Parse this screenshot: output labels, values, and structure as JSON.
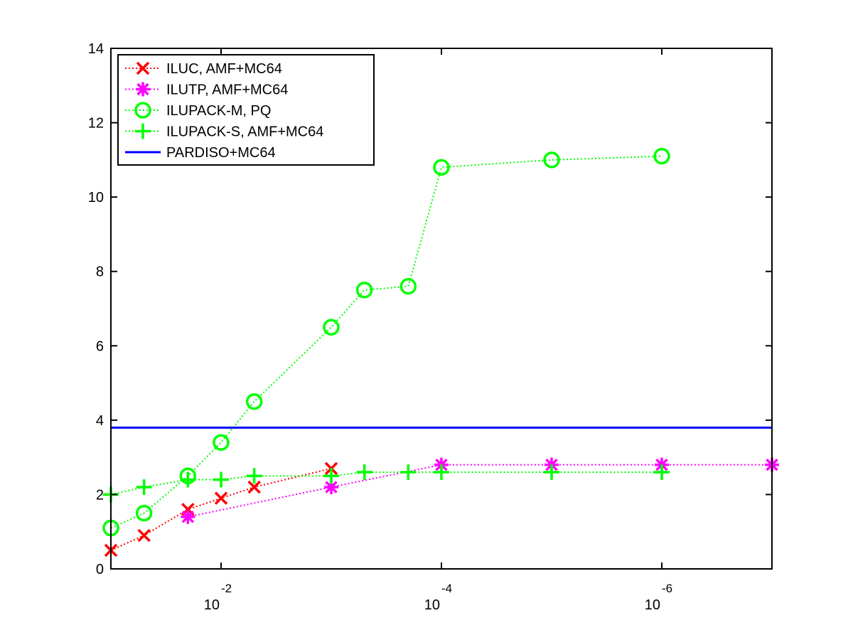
{
  "chart_data": {
    "type": "line",
    "x_scale": "log-reversed",
    "xlim": [
      0.1,
      1e-07
    ],
    "ylim": [
      0,
      14
    ],
    "x_ticks": [
      {
        "value": 0.01,
        "base": "10",
        "exp": "-2"
      },
      {
        "value": 0.0001,
        "base": "10",
        "exp": "-4"
      },
      {
        "value": 1e-06,
        "base": "10",
        "exp": "-6"
      }
    ],
    "y_ticks": [
      {
        "value": 0,
        "label": "0"
      },
      {
        "value": 2,
        "label": "2"
      },
      {
        "value": 4,
        "label": "4"
      },
      {
        "value": 6,
        "label": "6"
      },
      {
        "value": 8,
        "label": "8"
      },
      {
        "value": 10,
        "label": "10"
      },
      {
        "value": 12,
        "label": "12"
      },
      {
        "value": 14,
        "label": "14"
      }
    ],
    "grid": false,
    "legend_position": "top-left",
    "series": [
      {
        "name": "ILUC, AMF+MC64",
        "color": "#ff0000",
        "marker": "x",
        "line_style": "dotted",
        "x": [
          0.1,
          0.05,
          0.02,
          0.01,
          0.005,
          0.001
        ],
        "y": [
          0.5,
          0.9,
          1.6,
          1.9,
          2.2,
          2.7
        ]
      },
      {
        "name": "ILUTP, AMF+MC64",
        "color": "#ff00ff",
        "marker": "asterisk",
        "line_style": "dotted",
        "x": [
          0.02,
          0.001,
          0.0001,
          1e-05,
          1e-06,
          1e-07
        ],
        "y": [
          1.4,
          2.2,
          2.8,
          2.8,
          2.8,
          2.8
        ]
      },
      {
        "name": "ILUPACK-M, PQ",
        "color": "#00ff00",
        "marker": "circle",
        "line_style": "dotted",
        "x": [
          0.1,
          0.05,
          0.02,
          0.01,
          0.005,
          0.001,
          0.0005,
          0.0002,
          0.0001,
          1e-05,
          1e-06
        ],
        "y": [
          1.1,
          1.5,
          2.5,
          3.4,
          4.5,
          6.5,
          7.5,
          7.6,
          10.8,
          11.0,
          11.1
        ]
      },
      {
        "name": "ILUPACK-S, AMF+MC64",
        "color": "#00ff00",
        "marker": "plus",
        "line_style": "dotted",
        "x": [
          0.1,
          0.05,
          0.02,
          0.01,
          0.005,
          0.001,
          0.0005,
          0.0002,
          0.0001,
          1e-05,
          1e-06
        ],
        "y": [
          2.0,
          2.2,
          2.4,
          2.4,
          2.5,
          2.5,
          2.6,
          2.6,
          2.6,
          2.6,
          2.6
        ]
      },
      {
        "name": "PARDISO+MC64",
        "color": "#0000ff",
        "marker": "none",
        "line_style": "solid",
        "x": [
          0.1,
          1e-07
        ],
        "y": [
          3.8,
          3.8
        ]
      }
    ]
  }
}
